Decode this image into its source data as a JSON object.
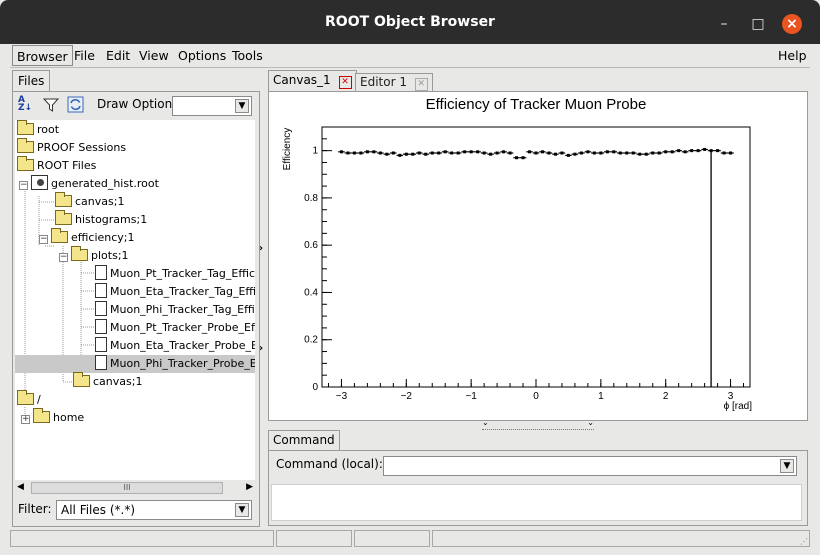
{
  "window": {
    "title": "ROOT Object Browser",
    "minimize": "–",
    "maximize": "□",
    "close": "×"
  },
  "menu": {
    "items": [
      "Browser",
      "File",
      "Edit",
      "View",
      "Options",
      "Tools"
    ],
    "help": "Help"
  },
  "left": {
    "tab": "Files",
    "draw_option_label": "Draw Option:",
    "draw_option_value": "",
    "filter_label": "Filter:",
    "filter_value": "All Files (*.*)",
    "scroll_grip": "III",
    "tree": [
      {
        "label": "root",
        "icon": "folder-icon"
      },
      {
        "label": "PROOF Sessions",
        "icon": "folder-icon"
      },
      {
        "label": "ROOT Files",
        "icon": "folder-icon"
      },
      {
        "label": "generated_hist.root",
        "icon": "root-file-icon"
      },
      {
        "label": "canvas;1",
        "icon": "folder-icon"
      },
      {
        "label": "histograms;1",
        "icon": "folder-icon"
      },
      {
        "label": "efficiency;1",
        "icon": "folder-open-icon"
      },
      {
        "label": "plots;1",
        "icon": "folder-open-icon"
      },
      {
        "label": "Muon_Pt_Tracker_Tag_Efficien",
        "icon": "document-icon"
      },
      {
        "label": "Muon_Eta_Tracker_Tag_Efficie",
        "icon": "document-icon"
      },
      {
        "label": "Muon_Phi_Tracker_Tag_Efficie",
        "icon": "document-icon"
      },
      {
        "label": "Muon_Pt_Tracker_Probe_Effici",
        "icon": "document-icon"
      },
      {
        "label": "Muon_Eta_Tracker_Probe_Effic",
        "icon": "document-icon"
      },
      {
        "label": "Muon_Phi_Tracker_Probe_Effic",
        "icon": "document-icon"
      },
      {
        "label": "canvas;1",
        "icon": "folder-icon"
      },
      {
        "label": "/",
        "icon": "folder-open-icon"
      },
      {
        "label": "home",
        "icon": "folder-icon"
      }
    ]
  },
  "right": {
    "tabs": [
      {
        "label": "Canvas_1",
        "close": "✕"
      },
      {
        "label": "Editor 1",
        "close": "✕"
      }
    ],
    "command_tab": "Command",
    "command_label": "Command (local):",
    "command_value": ""
  },
  "chart_data": {
    "type": "scatter",
    "title": "Efficiency of Tracker Muon Probe",
    "xlabel": "ϕ [rad]",
    "ylabel": "Efficiency",
    "xlim": [
      -3.3,
      3.3
    ],
    "ylim": [
      0,
      1.1
    ],
    "xticks": [
      "−3",
      "−2",
      "−1",
      "0",
      "1",
      "2",
      "3"
    ],
    "yticks": [
      "0",
      "0.2",
      "0.4",
      "0.6",
      "0.8",
      "1"
    ],
    "x": [
      -3.0,
      -2.9,
      -2.8,
      -2.7,
      -2.6,
      -2.5,
      -2.4,
      -2.3,
      -2.2,
      -2.1,
      -2.0,
      -1.9,
      -1.8,
      -1.7,
      -1.6,
      -1.5,
      -1.4,
      -1.3,
      -1.2,
      -1.1,
      -1.0,
      -0.9,
      -0.8,
      -0.7,
      -0.6,
      -0.5,
      -0.4,
      -0.3,
      -0.2,
      -0.1,
      0.0,
      0.1,
      0.2,
      0.3,
      0.4,
      0.5,
      0.6,
      0.7,
      0.8,
      0.9,
      1.0,
      1.1,
      1.2,
      1.3,
      1.4,
      1.5,
      1.6,
      1.7,
      1.8,
      1.9,
      2.0,
      2.1,
      2.2,
      2.3,
      2.4,
      2.5,
      2.6,
      2.7,
      2.8,
      2.9,
      3.0
    ],
    "y": [
      0.995,
      0.99,
      0.99,
      0.99,
      0.995,
      0.995,
      0.99,
      0.985,
      0.99,
      0.98,
      0.985,
      0.985,
      0.99,
      0.985,
      0.99,
      0.99,
      0.995,
      0.99,
      0.99,
      0.995,
      0.995,
      0.995,
      0.99,
      0.985,
      0.99,
      0.995,
      0.99,
      0.97,
      0.97,
      0.995,
      0.99,
      0.995,
      0.99,
      0.985,
      0.99,
      0.98,
      0.985,
      0.99,
      0.995,
      0.99,
      0.99,
      0.995,
      0.995,
      0.99,
      0.99,
      0.99,
      0.985,
      0.985,
      0.99,
      0.99,
      0.995,
      0.995,
      1.0,
      0.995,
      1.0,
      1.0,
      1.005,
      1.0,
      1.0,
      0.99,
      0.99
    ],
    "spike_x": 2.7,
    "grid": false
  }
}
